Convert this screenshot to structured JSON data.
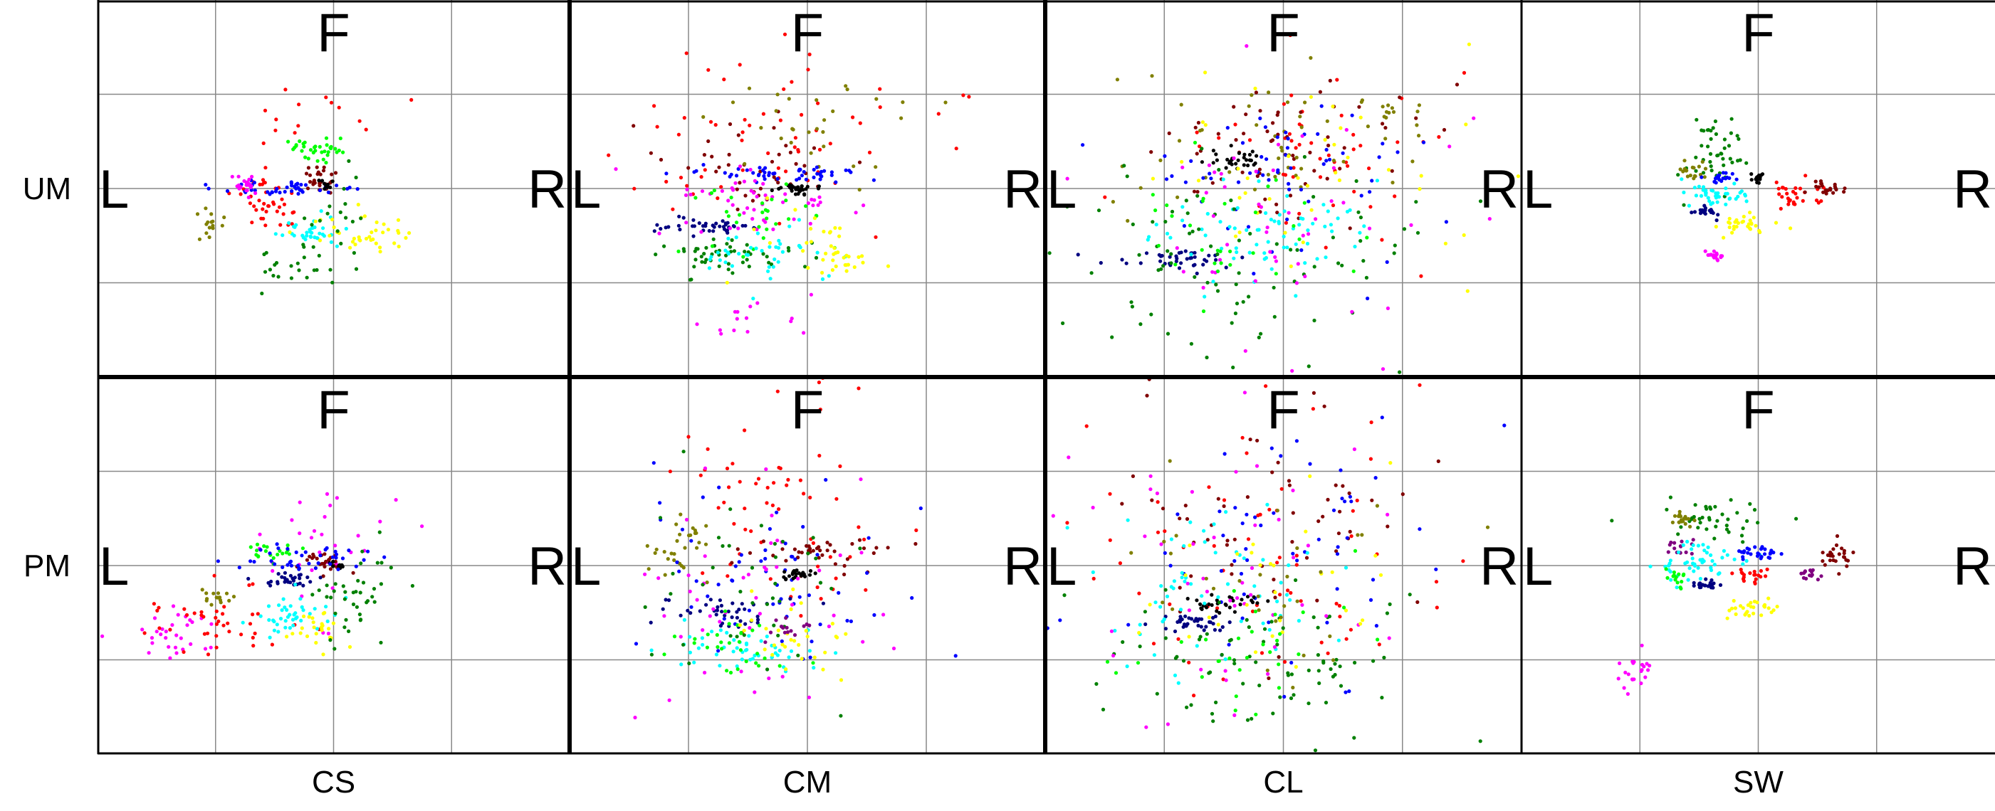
{
  "chart_data": {
    "type": "scatter",
    "rows": [
      "UM",
      "PM"
    ],
    "columns": [
      "CS",
      "CM",
      "CL",
      "SW"
    ],
    "direction_labels": {
      "top": "F",
      "left": "L",
      "right": "R"
    },
    "grid": true,
    "xlim": [
      -2,
      2
    ],
    "ylim": [
      -2,
      2
    ],
    "series_colors": [
      "#ff0000",
      "#008000",
      "#0000ff",
      "#000080",
      "#00ffff",
      "#ffff00",
      "#ff00ff",
      "#808000",
      "#800000",
      "#000000",
      "#00ff00",
      "#800080"
    ],
    "panels": [
      {
        "row": "UM",
        "column": "CS",
        "clusters": [
          {
            "color": "#ff0000",
            "cx": -0.55,
            "cy": -0.15,
            "sx": 0.15,
            "sy": 0.12,
            "n": 40
          },
          {
            "color": "#ff0000",
            "cx": -0.25,
            "cy": 0.7,
            "sx": 0.3,
            "sy": 0.3,
            "n": 14
          },
          {
            "color": "#00ff00",
            "cx": -0.15,
            "cy": 0.4,
            "sx": 0.12,
            "sy": 0.06,
            "n": 35
          },
          {
            "color": "#800000",
            "cx": -0.1,
            "cy": 0.1,
            "sx": 0.06,
            "sy": 0.07,
            "n": 28
          },
          {
            "color": "#0000ff",
            "cx": -0.4,
            "cy": 0.0,
            "sx": 0.25,
            "sy": 0.04,
            "n": 45
          },
          {
            "color": "#ff00ff",
            "cx": -0.75,
            "cy": 0.05,
            "sx": 0.05,
            "sy": 0.06,
            "n": 20
          },
          {
            "color": "#808000",
            "cx": -1.05,
            "cy": -0.4,
            "sx": 0.08,
            "sy": 0.1,
            "n": 16
          },
          {
            "color": "#00ffff",
            "cx": -0.2,
            "cy": -0.45,
            "sx": 0.15,
            "sy": 0.08,
            "n": 35
          },
          {
            "color": "#ffff00",
            "cx": 0.25,
            "cy": -0.5,
            "sx": 0.2,
            "sy": 0.1,
            "n": 40
          },
          {
            "color": "#008000",
            "cx": -0.3,
            "cy": -0.8,
            "sx": 0.2,
            "sy": 0.12,
            "n": 25
          },
          {
            "color": "#008000",
            "cx": 0.05,
            "cy": -0.25,
            "sx": 0.15,
            "sy": 0.25,
            "n": 15
          },
          {
            "color": "#000000",
            "cx": -0.1,
            "cy": 0.02,
            "sx": 0.05,
            "sy": 0.03,
            "n": 10
          }
        ]
      },
      {
        "row": "UM",
        "column": "CM",
        "clusters": [
          {
            "color": "#ff0000",
            "cx": -0.2,
            "cy": 0.6,
            "sx": 0.6,
            "sy": 0.55,
            "n": 60
          },
          {
            "color": "#800000",
            "cx": -0.5,
            "cy": 0.2,
            "sx": 0.4,
            "sy": 0.2,
            "n": 40
          },
          {
            "color": "#808000",
            "cx": 0.1,
            "cy": 0.6,
            "sx": 0.4,
            "sy": 0.3,
            "n": 30
          },
          {
            "color": "#0000ff",
            "cx": -0.2,
            "cy": 0.15,
            "sx": 0.4,
            "sy": 0.05,
            "n": 50
          },
          {
            "color": "#000000",
            "cx": -0.1,
            "cy": 0.0,
            "sx": 0.1,
            "sy": 0.03,
            "n": 30
          },
          {
            "color": "#000080",
            "cx": -0.9,
            "cy": -0.4,
            "sx": 0.2,
            "sy": 0.05,
            "n": 40
          },
          {
            "color": "#ff00ff",
            "cx": -0.3,
            "cy": -0.1,
            "sx": 0.4,
            "sy": 0.2,
            "n": 50
          },
          {
            "color": "#ff00ff",
            "cx": -0.5,
            "cy": -1.4,
            "sx": 0.3,
            "sy": 0.1,
            "n": 15
          },
          {
            "color": "#008000",
            "cx": -0.7,
            "cy": -0.7,
            "sx": 0.3,
            "sy": 0.1,
            "n": 50
          },
          {
            "color": "#00ff00",
            "cx": -0.4,
            "cy": -0.3,
            "sx": 0.3,
            "sy": 0.2,
            "n": 30
          },
          {
            "color": "#00ffff",
            "cx": -0.4,
            "cy": -0.7,
            "sx": 0.3,
            "sy": 0.15,
            "n": 40
          },
          {
            "color": "#ffff00",
            "cx": 0.3,
            "cy": -0.8,
            "sx": 0.2,
            "sy": 0.1,
            "n": 25
          },
          {
            "color": "#ffff00",
            "cx": -0.2,
            "cy": -0.4,
            "sx": 0.3,
            "sy": 0.3,
            "n": 15
          }
        ]
      },
      {
        "row": "UM",
        "column": "CL",
        "clusters": [
          {
            "color": "#ff0000",
            "cx": 0.3,
            "cy": 0.3,
            "sx": 0.6,
            "sy": 0.5,
            "n": 50
          },
          {
            "color": "#800000",
            "cx": 0.1,
            "cy": 0.4,
            "sx": 0.6,
            "sy": 0.35,
            "n": 60
          },
          {
            "color": "#808000",
            "cx": -0.2,
            "cy": 0.5,
            "sx": 0.8,
            "sy": 0.4,
            "n": 45
          },
          {
            "color": "#0000ff",
            "cx": -0.1,
            "cy": 0.1,
            "sx": 0.6,
            "sy": 0.4,
            "n": 60
          },
          {
            "color": "#000000",
            "cx": -0.4,
            "cy": 0.3,
            "sx": 0.12,
            "sy": 0.06,
            "n": 30
          },
          {
            "color": "#000080",
            "cx": -0.9,
            "cy": -0.75,
            "sx": 0.25,
            "sy": 0.06,
            "n": 40
          },
          {
            "color": "#00ffff",
            "cx": -0.1,
            "cy": -0.5,
            "sx": 0.5,
            "sy": 0.3,
            "n": 70
          },
          {
            "color": "#008000",
            "cx": -0.3,
            "cy": -0.9,
            "sx": 0.9,
            "sy": 0.6,
            "n": 90
          },
          {
            "color": "#ff00ff",
            "cx": -0.1,
            "cy": -0.2,
            "sx": 0.6,
            "sy": 0.6,
            "n": 50
          },
          {
            "color": "#ffff00",
            "cx": 0.2,
            "cy": 0.2,
            "sx": 0.7,
            "sy": 0.5,
            "n": 40
          },
          {
            "color": "#00ff00",
            "cx": -0.4,
            "cy": -0.3,
            "sx": 0.5,
            "sy": 0.4,
            "n": 30
          },
          {
            "color": "#808000",
            "cx": 0.9,
            "cy": 0.8,
            "sx": 0.15,
            "sy": 0.15,
            "n": 15
          }
        ]
      },
      {
        "row": "UM",
        "column": "SW",
        "clusters": [
          {
            "color": "#008000",
            "cx": -0.35,
            "cy": 0.35,
            "sx": 0.15,
            "sy": 0.18,
            "n": 45
          },
          {
            "color": "#808000",
            "cx": -0.55,
            "cy": 0.2,
            "sx": 0.06,
            "sy": 0.06,
            "n": 18
          },
          {
            "color": "#0000ff",
            "cx": -0.3,
            "cy": 0.12,
            "sx": 0.08,
            "sy": 0.03,
            "n": 20
          },
          {
            "color": "#000000",
            "cx": 0.0,
            "cy": 0.12,
            "sx": 0.04,
            "sy": 0.04,
            "n": 14
          },
          {
            "color": "#00ffff",
            "cx": -0.3,
            "cy": -0.05,
            "sx": 0.15,
            "sy": 0.06,
            "n": 40
          },
          {
            "color": "#ff0000",
            "cx": 0.3,
            "cy": -0.05,
            "sx": 0.12,
            "sy": 0.08,
            "n": 30
          },
          {
            "color": "#800000",
            "cx": 0.6,
            "cy": 0.0,
            "sx": 0.08,
            "sy": 0.04,
            "n": 22
          },
          {
            "color": "#000080",
            "cx": -0.45,
            "cy": -0.25,
            "sx": 0.06,
            "sy": 0.03,
            "n": 20
          },
          {
            "color": "#ffff00",
            "cx": -0.1,
            "cy": -0.4,
            "sx": 0.12,
            "sy": 0.06,
            "n": 30
          },
          {
            "color": "#ff00ff",
            "cx": -0.35,
            "cy": -0.7,
            "sx": 0.04,
            "sy": 0.03,
            "n": 16
          }
        ]
      },
      {
        "row": "PM",
        "column": "CS",
        "clusters": [
          {
            "color": "#ff00ff",
            "cx": -1.4,
            "cy": -0.7,
            "sx": 0.2,
            "sy": 0.12,
            "n": 30
          },
          {
            "color": "#ff00ff",
            "cx": -0.1,
            "cy": 0.2,
            "sx": 0.35,
            "sy": 0.3,
            "n": 30
          },
          {
            "color": "#ff0000",
            "cx": -1.0,
            "cy": -0.6,
            "sx": 0.35,
            "sy": 0.18,
            "n": 40
          },
          {
            "color": "#808000",
            "cx": -1.0,
            "cy": -0.35,
            "sx": 0.1,
            "sy": 0.05,
            "n": 15
          },
          {
            "color": "#00ff00",
            "cx": -0.5,
            "cy": 0.15,
            "sx": 0.1,
            "sy": 0.05,
            "n": 20
          },
          {
            "color": "#800000",
            "cx": -0.1,
            "cy": 0.05,
            "sx": 0.1,
            "sy": 0.08,
            "n": 25
          },
          {
            "color": "#000000",
            "cx": 0.0,
            "cy": 0.0,
            "sx": 0.06,
            "sy": 0.03,
            "n": 10
          },
          {
            "color": "#0000ff",
            "cx": -0.2,
            "cy": 0.05,
            "sx": 0.25,
            "sy": 0.08,
            "n": 40
          },
          {
            "color": "#000080",
            "cx": -0.4,
            "cy": -0.15,
            "sx": 0.15,
            "sy": 0.04,
            "n": 30
          },
          {
            "color": "#00ffff",
            "cx": -0.3,
            "cy": -0.5,
            "sx": 0.2,
            "sy": 0.12,
            "n": 40
          },
          {
            "color": "#ffff00",
            "cx": -0.15,
            "cy": -0.65,
            "sx": 0.1,
            "sy": 0.12,
            "n": 25
          },
          {
            "color": "#008000",
            "cx": 0.2,
            "cy": -0.3,
            "sx": 0.2,
            "sy": 0.3,
            "n": 40
          }
        ]
      },
      {
        "row": "PM",
        "column": "CM",
        "clusters": [
          {
            "color": "#ff0000",
            "cx": -0.2,
            "cy": 0.5,
            "sx": 0.5,
            "sy": 0.7,
            "n": 60
          },
          {
            "color": "#800000",
            "cx": 0.1,
            "cy": 0.1,
            "sx": 0.3,
            "sy": 0.1,
            "n": 40
          },
          {
            "color": "#808000",
            "cx": -1.1,
            "cy": 0.15,
            "sx": 0.15,
            "sy": 0.15,
            "n": 30
          },
          {
            "color": "#0000ff",
            "cx": -0.3,
            "cy": 0.0,
            "sx": 0.6,
            "sy": 0.5,
            "n": 60
          },
          {
            "color": "#000000",
            "cx": -0.1,
            "cy": -0.1,
            "sx": 0.08,
            "sy": 0.03,
            "n": 25
          },
          {
            "color": "#000080",
            "cx": -0.6,
            "cy": -0.5,
            "sx": 0.3,
            "sy": 0.1,
            "n": 40
          },
          {
            "color": "#ff00ff",
            "cx": -0.5,
            "cy": -0.4,
            "sx": 0.6,
            "sy": 0.7,
            "n": 50
          },
          {
            "color": "#00ffff",
            "cx": -0.5,
            "cy": -0.9,
            "sx": 0.3,
            "sy": 0.12,
            "n": 50
          },
          {
            "color": "#00ff00",
            "cx": -0.6,
            "cy": -0.9,
            "sx": 0.25,
            "sy": 0.2,
            "n": 30
          },
          {
            "color": "#008000",
            "cx": -0.3,
            "cy": -0.3,
            "sx": 0.5,
            "sy": 0.5,
            "n": 40
          },
          {
            "color": "#ffff00",
            "cx": -0.1,
            "cy": -0.7,
            "sx": 0.3,
            "sy": 0.3,
            "n": 30
          },
          {
            "color": "#800080",
            "cx": -0.2,
            "cy": -0.7,
            "sx": 0.1,
            "sy": 0.1,
            "n": 15
          }
        ]
      },
      {
        "row": "PM",
        "column": "CL",
        "clusters": [
          {
            "color": "#ff0000",
            "cx": -0.2,
            "cy": 0.2,
            "sx": 0.8,
            "sy": 0.9,
            "n": 70
          },
          {
            "color": "#800000",
            "cx": -0.2,
            "cy": 0.4,
            "sx": 0.6,
            "sy": 0.6,
            "n": 60
          },
          {
            "color": "#0000ff",
            "cx": 0.1,
            "cy": 0.3,
            "sx": 0.7,
            "sy": 0.7,
            "n": 60
          },
          {
            "color": "#000000",
            "cx": -0.5,
            "cy": -0.4,
            "sx": 0.15,
            "sy": 0.05,
            "n": 30
          },
          {
            "color": "#000080",
            "cx": -0.7,
            "cy": -0.6,
            "sx": 0.15,
            "sy": 0.05,
            "n": 35
          },
          {
            "color": "#00ffff",
            "cx": -0.6,
            "cy": -0.2,
            "sx": 0.5,
            "sy": 0.4,
            "n": 60
          },
          {
            "color": "#008000",
            "cx": -0.2,
            "cy": -1.0,
            "sx": 0.7,
            "sy": 0.4,
            "n": 80
          },
          {
            "color": "#ff00ff",
            "cx": -0.4,
            "cy": 0.0,
            "sx": 0.8,
            "sy": 0.8,
            "n": 50
          },
          {
            "color": "#ffff00",
            "cx": -0.2,
            "cy": -0.3,
            "sx": 0.6,
            "sy": 0.6,
            "n": 30
          },
          {
            "color": "#00ff00",
            "cx": -0.4,
            "cy": -0.9,
            "sx": 0.5,
            "sy": 0.3,
            "n": 30
          },
          {
            "color": "#808000",
            "cx": -0.1,
            "cy": -0.1,
            "sx": 0.8,
            "sy": 0.5,
            "n": 30
          }
        ]
      },
      {
        "row": "PM",
        "column": "SW",
        "clusters": [
          {
            "color": "#008000",
            "cx": -0.4,
            "cy": 0.5,
            "sx": 0.25,
            "sy": 0.12,
            "n": 40
          },
          {
            "color": "#808000",
            "cx": -0.65,
            "cy": 0.5,
            "sx": 0.08,
            "sy": 0.04,
            "n": 18
          },
          {
            "color": "#800080",
            "cx": -0.65,
            "cy": 0.2,
            "sx": 0.06,
            "sy": 0.05,
            "n": 15
          },
          {
            "color": "#00ffff",
            "cx": -0.5,
            "cy": 0.05,
            "sx": 0.2,
            "sy": 0.12,
            "n": 50
          },
          {
            "color": "#0000ff",
            "cx": 0.0,
            "cy": 0.15,
            "sx": 0.1,
            "sy": 0.04,
            "n": 28
          },
          {
            "color": "#00ff00",
            "cx": -0.7,
            "cy": -0.1,
            "sx": 0.05,
            "sy": 0.06,
            "n": 14
          },
          {
            "color": "#000080",
            "cx": -0.45,
            "cy": -0.2,
            "sx": 0.08,
            "sy": 0.03,
            "n": 20
          },
          {
            "color": "#ff0000",
            "cx": -0.05,
            "cy": -0.1,
            "sx": 0.12,
            "sy": 0.05,
            "n": 20
          },
          {
            "color": "#800000",
            "cx": 0.65,
            "cy": 0.1,
            "sx": 0.06,
            "sy": 0.08,
            "n": 25
          },
          {
            "color": "#800080",
            "cx": 0.45,
            "cy": -0.1,
            "sx": 0.04,
            "sy": 0.04,
            "n": 14
          },
          {
            "color": "#ffff00",
            "cx": -0.05,
            "cy": -0.45,
            "sx": 0.12,
            "sy": 0.05,
            "n": 28
          },
          {
            "color": "#ff00ff",
            "cx": -1.05,
            "cy": -1.15,
            "sx": 0.1,
            "sy": 0.12,
            "n": 22
          }
        ]
      }
    ]
  }
}
